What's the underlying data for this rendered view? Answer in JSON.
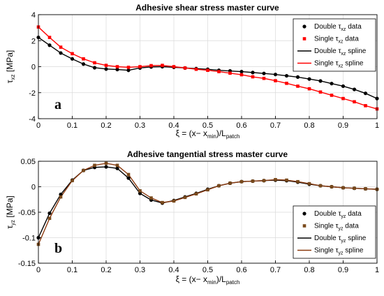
{
  "chart_data": [
    {
      "type": "line",
      "panel_label": "a",
      "title": "Adhesive shear stress master curve",
      "xlabel": {
        "main": "ξ = (x− x",
        "sub1": "min",
        "mid": ")/L",
        "sub2": "patch"
      },
      "ylabel": {
        "main": "τ",
        "sub": "xz",
        "unit": " [MPa]"
      },
      "xlim": [
        0,
        1
      ],
      "ylim": [
        -4,
        4
      ],
      "xticks": [
        0,
        0.1,
        0.2,
        0.3,
        0.4,
        0.5,
        0.6,
        0.7,
        0.8,
        0.9,
        1
      ],
      "xtick_labels": [
        "0",
        "0.1",
        "0.2",
        "0.3",
        "0.4",
        "0.5",
        "0.6",
        "0.7",
        "0.8",
        "0.9",
        "1"
      ],
      "yticks": [
        -4,
        -2,
        0,
        2,
        4
      ],
      "ytick_labels": [
        "-4",
        "-2",
        "0",
        "2",
        "4"
      ],
      "grid": true,
      "legend_position": "top-right",
      "series": [
        {
          "name": "Double τxz data",
          "legend_main": "Double τ",
          "legend_sub": "xz",
          "legend_tail": " data",
          "kind": "markers",
          "marker": "circle",
          "color": "#000000",
          "x": [
            0,
            0.033,
            0.066,
            0.1,
            0.133,
            0.166,
            0.2,
            0.233,
            0.266,
            0.3,
            0.333,
            0.366,
            0.4,
            0.433,
            0.466,
            0.5,
            0.533,
            0.566,
            0.6,
            0.633,
            0.666,
            0.7,
            0.733,
            0.766,
            0.8,
            0.833,
            0.866,
            0.9,
            0.933,
            0.966,
            1
          ],
          "y": [
            2.25,
            1.65,
            1.05,
            0.6,
            0.2,
            -0.08,
            -0.18,
            -0.22,
            -0.28,
            -0.1,
            -0.02,
            0.0,
            -0.05,
            -0.1,
            -0.15,
            -0.2,
            -0.28,
            -0.33,
            -0.38,
            -0.45,
            -0.52,
            -0.6,
            -0.7,
            -0.8,
            -0.95,
            -1.1,
            -1.3,
            -1.5,
            -1.75,
            -2.05,
            -2.45
          ]
        },
        {
          "name": "Single τxz data",
          "legend_main": "Single τ",
          "legend_sub": "xz",
          "legend_tail": " data",
          "kind": "markers",
          "marker": "square",
          "color": "#ff0000",
          "x": [
            0,
            0.033,
            0.066,
            0.1,
            0.133,
            0.166,
            0.2,
            0.233,
            0.266,
            0.3,
            0.333,
            0.366,
            0.4,
            0.433,
            0.466,
            0.5,
            0.533,
            0.566,
            0.6,
            0.633,
            0.666,
            0.7,
            0.733,
            0.766,
            0.8,
            0.833,
            0.866,
            0.9,
            0.933,
            0.966,
            1
          ],
          "y": [
            3.05,
            2.25,
            1.5,
            1.0,
            0.6,
            0.3,
            0.1,
            0.0,
            -0.05,
            0.0,
            0.08,
            0.1,
            0.0,
            -0.1,
            -0.2,
            -0.28,
            -0.38,
            -0.5,
            -0.62,
            -0.78,
            -0.9,
            -1.08,
            -1.28,
            -1.5,
            -1.7,
            -1.95,
            -2.2,
            -2.45,
            -2.7,
            -3.0,
            -3.25
          ]
        },
        {
          "name": "Double τxz spline",
          "legend_main": "Double τ",
          "legend_sub": "xz",
          "legend_tail": " spline",
          "kind": "line",
          "color": "#000000",
          "x": [
            0,
            0.033,
            0.066,
            0.1,
            0.133,
            0.166,
            0.2,
            0.233,
            0.266,
            0.3,
            0.333,
            0.366,
            0.4,
            0.433,
            0.466,
            0.5,
            0.533,
            0.566,
            0.6,
            0.633,
            0.666,
            0.7,
            0.733,
            0.766,
            0.8,
            0.833,
            0.866,
            0.9,
            0.933,
            0.966,
            1
          ],
          "y": [
            2.25,
            1.65,
            1.05,
            0.6,
            0.2,
            -0.08,
            -0.18,
            -0.22,
            -0.28,
            -0.1,
            -0.02,
            0.0,
            -0.05,
            -0.1,
            -0.15,
            -0.2,
            -0.28,
            -0.33,
            -0.38,
            -0.45,
            -0.52,
            -0.6,
            -0.7,
            -0.8,
            -0.95,
            -1.1,
            -1.3,
            -1.5,
            -1.75,
            -2.05,
            -2.45
          ]
        },
        {
          "name": "Single τxz spline",
          "legend_main": "Single τ",
          "legend_sub": "xz",
          "legend_tail": " spline",
          "kind": "line",
          "color": "#ff0000",
          "x": [
            0,
            0.033,
            0.066,
            0.1,
            0.133,
            0.166,
            0.2,
            0.233,
            0.266,
            0.3,
            0.333,
            0.366,
            0.4,
            0.433,
            0.466,
            0.5,
            0.533,
            0.566,
            0.6,
            0.633,
            0.666,
            0.7,
            0.733,
            0.766,
            0.8,
            0.833,
            0.866,
            0.9,
            0.933,
            0.966,
            1
          ],
          "y": [
            3.05,
            2.25,
            1.5,
            1.0,
            0.6,
            0.3,
            0.1,
            0.0,
            -0.05,
            0.0,
            0.08,
            0.1,
            0.0,
            -0.1,
            -0.2,
            -0.28,
            -0.38,
            -0.5,
            -0.62,
            -0.78,
            -0.9,
            -1.08,
            -1.28,
            -1.5,
            -1.7,
            -1.95,
            -2.2,
            -2.45,
            -2.7,
            -3.0,
            -3.25
          ]
        }
      ]
    },
    {
      "type": "line",
      "panel_label": "b",
      "title": "Adhesive tangential stress master curve",
      "xlabel": {
        "main": "ξ = (x− x",
        "sub1": "min",
        "mid": ")/L",
        "sub2": "patch"
      },
      "ylabel": {
        "main": "τ",
        "sub": "yz",
        "unit": " [MPa]"
      },
      "xlim": [
        0,
        1
      ],
      "ylim": [
        -0.15,
        0.05
      ],
      "xticks": [
        0,
        0.1,
        0.2,
        0.3,
        0.4,
        0.5,
        0.6,
        0.7,
        0.8,
        0.9,
        1
      ],
      "xtick_labels": [
        "0",
        "0.1",
        "0.2",
        "0.3",
        "0.4",
        "0.5",
        "0.6",
        "0.7",
        "0.8",
        "0.9",
        "1"
      ],
      "yticks": [
        -0.15,
        -0.1,
        -0.05,
        0,
        0.05
      ],
      "ytick_labels": [
        "-0.15",
        "-0.1",
        "-0.05",
        "0",
        "0.05"
      ],
      "grid": true,
      "legend_position": "bottom-right",
      "series": [
        {
          "name": "Double τyz data",
          "legend_main": "Double τ",
          "legend_sub": "yz",
          "legend_tail": " data",
          "kind": "markers",
          "marker": "circle",
          "color": "#000000",
          "x": [
            0,
            0.033,
            0.066,
            0.1,
            0.133,
            0.166,
            0.2,
            0.233,
            0.266,
            0.3,
            0.333,
            0.366,
            0.4,
            0.433,
            0.466,
            0.5,
            0.533,
            0.566,
            0.6,
            0.633,
            0.666,
            0.7,
            0.733,
            0.766,
            0.8,
            0.833,
            0.866,
            0.9,
            0.933,
            0.966,
            1
          ],
          "y": [
            -0.1,
            -0.052,
            -0.015,
            0.013,
            0.032,
            0.038,
            0.039,
            0.036,
            0.017,
            -0.013,
            -0.026,
            -0.032,
            -0.027,
            -0.02,
            -0.013,
            -0.005,
            0.002,
            0.007,
            0.01,
            0.011,
            0.012,
            0.013,
            0.012,
            0.009,
            0.005,
            0.002,
            0.0,
            -0.002,
            -0.003,
            -0.004,
            -0.005
          ]
        },
        {
          "name": "Single τyz data",
          "legend_main": "Single τ",
          "legend_sub": "yz",
          "legend_tail": " data",
          "kind": "markers",
          "marker": "square",
          "color": "#7a4a1c",
          "x": [
            0,
            0.033,
            0.066,
            0.1,
            0.133,
            0.166,
            0.2,
            0.233,
            0.266,
            0.3,
            0.333,
            0.366,
            0.4,
            0.433,
            0.466,
            0.5,
            0.533,
            0.566,
            0.6,
            0.633,
            0.666,
            0.7,
            0.733,
            0.766,
            0.8,
            0.833,
            0.866,
            0.9,
            0.933,
            0.966,
            1
          ],
          "y": [
            -0.113,
            -0.062,
            -0.02,
            0.012,
            0.032,
            0.042,
            0.046,
            0.042,
            0.024,
            -0.008,
            -0.022,
            -0.031,
            -0.028,
            -0.021,
            -0.014,
            -0.006,
            0.002,
            0.007,
            0.01,
            0.011,
            0.012,
            0.014,
            0.013,
            0.01,
            0.006,
            0.002,
            0.0,
            -0.002,
            -0.003,
            -0.004,
            -0.005
          ]
        },
        {
          "name": "Double τyz spline",
          "legend_main": "Double τ",
          "legend_sub": "yz",
          "legend_tail": " spline",
          "kind": "line",
          "color": "#000000",
          "x": [
            0,
            0.033,
            0.066,
            0.1,
            0.133,
            0.166,
            0.2,
            0.233,
            0.266,
            0.3,
            0.333,
            0.366,
            0.4,
            0.433,
            0.466,
            0.5,
            0.533,
            0.566,
            0.6,
            0.633,
            0.666,
            0.7,
            0.733,
            0.766,
            0.8,
            0.833,
            0.866,
            0.9,
            0.933,
            0.966,
            1
          ],
          "y": [
            -0.1,
            -0.052,
            -0.015,
            0.013,
            0.032,
            0.038,
            0.039,
            0.036,
            0.017,
            -0.013,
            -0.026,
            -0.032,
            -0.027,
            -0.02,
            -0.013,
            -0.005,
            0.002,
            0.007,
            0.01,
            0.011,
            0.012,
            0.013,
            0.012,
            0.009,
            0.005,
            0.002,
            0.0,
            -0.002,
            -0.003,
            -0.004,
            -0.005
          ]
        },
        {
          "name": "Single τyz spline",
          "legend_main": "Single τ",
          "legend_sub": "yz",
          "legend_tail": " spline",
          "kind": "line",
          "color": "#8b3a0f",
          "x": [
            0,
            0.033,
            0.066,
            0.1,
            0.133,
            0.166,
            0.2,
            0.233,
            0.266,
            0.3,
            0.333,
            0.366,
            0.4,
            0.433,
            0.466,
            0.5,
            0.533,
            0.566,
            0.6,
            0.633,
            0.666,
            0.7,
            0.733,
            0.766,
            0.8,
            0.833,
            0.866,
            0.9,
            0.933,
            0.966,
            1
          ],
          "y": [
            -0.113,
            -0.062,
            -0.02,
            0.012,
            0.032,
            0.042,
            0.046,
            0.042,
            0.024,
            -0.008,
            -0.022,
            -0.031,
            -0.028,
            -0.021,
            -0.014,
            -0.006,
            0.002,
            0.007,
            0.01,
            0.011,
            0.012,
            0.014,
            0.013,
            0.01,
            0.006,
            0.002,
            0.0,
            -0.002,
            -0.003,
            -0.004,
            -0.005
          ]
        }
      ]
    }
  ]
}
